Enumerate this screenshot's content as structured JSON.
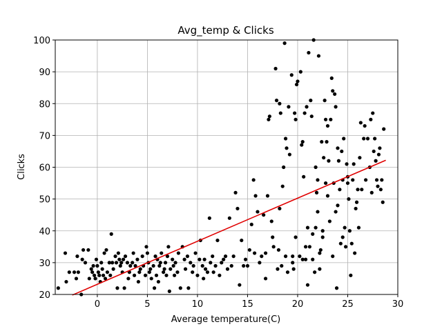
{
  "chart_data": {
    "type": "scatter",
    "title": "Avg_temp & Clicks",
    "xlabel": "Average temperature(C)",
    "ylabel": "Clicks",
    "xlim": [
      -4.2,
      30
    ],
    "ylim": [
      20,
      100
    ],
    "xticks": [
      0,
      5,
      10,
      15,
      20,
      25,
      30
    ],
    "yticks": [
      20,
      30,
      40,
      50,
      60,
      70,
      80,
      90,
      100
    ],
    "grid": true,
    "colors": {
      "points": "#000000",
      "fit_line": "#e00000",
      "grid": "#b0b0b0"
    },
    "fit_line": {
      "x": [
        -2.5,
        28.8
      ],
      "y": [
        19.8,
        62.2
      ]
    },
    "series": [
      {
        "values": [
          [
            -3.9,
            22
          ],
          [
            -3.2,
            33
          ],
          [
            -3.1,
            24
          ],
          [
            -2.8,
            27
          ],
          [
            -2.3,
            27
          ],
          [
            -2.1,
            25
          ],
          [
            -2.0,
            32
          ],
          [
            -1.9,
            27
          ],
          [
            -1.6,
            20
          ],
          [
            -1.5,
            31
          ],
          [
            -1.4,
            34
          ],
          [
            -1.2,
            30
          ],
          [
            -0.9,
            34
          ],
          [
            -0.8,
            25
          ],
          [
            -0.6,
            28
          ],
          [
            -0.5,
            27
          ],
          [
            -0.4,
            29
          ],
          [
            -0.3,
            26
          ],
          [
            -0.2,
            25
          ],
          [
            -0.1,
            31
          ],
          [
            0.0,
            29
          ],
          [
            0.1,
            27
          ],
          [
            0.2,
            26
          ],
          [
            0.3,
            24
          ],
          [
            0.4,
            30
          ],
          [
            0.5,
            28
          ],
          [
            0.6,
            26
          ],
          [
            0.7,
            33
          ],
          [
            0.8,
            25
          ],
          [
            0.9,
            34
          ],
          [
            1.0,
            27
          ],
          [
            1.2,
            30
          ],
          [
            1.3,
            26
          ],
          [
            1.4,
            39
          ],
          [
            1.5,
            30
          ],
          [
            1.6,
            28
          ],
          [
            1.8,
            32
          ],
          [
            1.9,
            30
          ],
          [
            2.0,
            22
          ],
          [
            2.1,
            33
          ],
          [
            2.2,
            31
          ],
          [
            2.3,
            29
          ],
          [
            2.4,
            30
          ],
          [
            2.5,
            27
          ],
          [
            2.6,
            31
          ],
          [
            2.7,
            22
          ],
          [
            2.8,
            32
          ],
          [
            3.0,
            30
          ],
          [
            3.1,
            25
          ],
          [
            3.2,
            27
          ],
          [
            3.3,
            29
          ],
          [
            3.5,
            30
          ],
          [
            3.6,
            33
          ],
          [
            3.7,
            26
          ],
          [
            3.8,
            29
          ],
          [
            4.0,
            31
          ],
          [
            4.1,
            24
          ],
          [
            4.2,
            27
          ],
          [
            4.3,
            28
          ],
          [
            4.5,
            32
          ],
          [
            4.6,
            29
          ],
          [
            4.8,
            26
          ],
          [
            4.9,
            35
          ],
          [
            5.0,
            33
          ],
          [
            5.1,
            30
          ],
          [
            5.2,
            27
          ],
          [
            5.3,
            28
          ],
          [
            5.4,
            25
          ],
          [
            5.6,
            29
          ],
          [
            5.7,
            22
          ],
          [
            5.8,
            32
          ],
          [
            5.9,
            26
          ],
          [
            6.0,
            31
          ],
          [
            6.1,
            24
          ],
          [
            6.2,
            29
          ],
          [
            6.3,
            30
          ],
          [
            6.4,
            33
          ],
          [
            6.6,
            27
          ],
          [
            6.7,
            28
          ],
          [
            6.8,
            30
          ],
          [
            6.9,
            26
          ],
          [
            7.0,
            32
          ],
          [
            7.1,
            35
          ],
          [
            7.2,
            21
          ],
          [
            7.3,
            28
          ],
          [
            7.5,
            31
          ],
          [
            7.6,
            29
          ],
          [
            7.7,
            26
          ],
          [
            7.8,
            30
          ],
          [
            8.0,
            27
          ],
          [
            8.1,
            33
          ],
          [
            8.3,
            22
          ],
          [
            8.5,
            35
          ],
          [
            8.7,
            31
          ],
          [
            8.8,
            28
          ],
          [
            9.0,
            32
          ],
          [
            9.1,
            22
          ],
          [
            9.3,
            30
          ],
          [
            9.5,
            27
          ],
          [
            9.6,
            29
          ],
          [
            9.8,
            33
          ],
          [
            10.0,
            26
          ],
          [
            10.2,
            31
          ],
          [
            10.3,
            37
          ],
          [
            10.5,
            29
          ],
          [
            10.6,
            25
          ],
          [
            10.7,
            31
          ],
          [
            10.8,
            28
          ],
          [
            11.0,
            27
          ],
          [
            11.2,
            44
          ],
          [
            11.3,
            30
          ],
          [
            11.5,
            32
          ],
          [
            11.6,
            27
          ],
          [
            11.8,
            29
          ],
          [
            12.0,
            37
          ],
          [
            12.2,
            26
          ],
          [
            12.4,
            30
          ],
          [
            12.6,
            31
          ],
          [
            12.8,
            32
          ],
          [
            13.0,
            28
          ],
          [
            13.2,
            44
          ],
          [
            13.4,
            29
          ],
          [
            13.6,
            32
          ],
          [
            13.8,
            52
          ],
          [
            14.0,
            47
          ],
          [
            14.2,
            23
          ],
          [
            14.4,
            37
          ],
          [
            14.6,
            29
          ],
          [
            14.8,
            31
          ],
          [
            15.0,
            29
          ],
          [
            15.2,
            34
          ],
          [
            15.4,
            42
          ],
          [
            15.6,
            56
          ],
          [
            15.7,
            33
          ],
          [
            15.8,
            51
          ],
          [
            16.0,
            46
          ],
          [
            16.2,
            30
          ],
          [
            16.4,
            32
          ],
          [
            16.6,
            45
          ],
          [
            16.8,
            25
          ],
          [
            17.0,
            51
          ],
          [
            17.1,
            75
          ],
          [
            17.2,
            76
          ],
          [
            17.4,
            43
          ],
          [
            17.6,
            35
          ],
          [
            17.8,
            91
          ],
          [
            17.9,
            81
          ],
          [
            18.0,
            28
          ],
          [
            18.1,
            34
          ],
          [
            18.2,
            80
          ],
          [
            18.3,
            77
          ],
          [
            18.4,
            29
          ],
          [
            18.5,
            54
          ],
          [
            18.6,
            60
          ],
          [
            18.7,
            99
          ],
          [
            18.8,
            69
          ],
          [
            18.9,
            66
          ],
          [
            19.0,
            27
          ],
          [
            19.1,
            79
          ],
          [
            19.2,
            64
          ],
          [
            19.4,
            89
          ],
          [
            19.5,
            32
          ],
          [
            19.6,
            28
          ],
          [
            19.7,
            77
          ],
          [
            19.8,
            75
          ],
          [
            19.9,
            86
          ],
          [
            20.0,
            87
          ],
          [
            20.2,
            32
          ],
          [
            20.3,
            90
          ],
          [
            20.4,
            67
          ],
          [
            20.5,
            68
          ],
          [
            20.6,
            57
          ],
          [
            20.7,
            77
          ],
          [
            20.8,
            31
          ],
          [
            20.9,
            79
          ],
          [
            21.0,
            23
          ],
          [
            21.1,
            96
          ],
          [
            21.2,
            35
          ],
          [
            21.3,
            81
          ],
          [
            21.4,
            76
          ],
          [
            21.5,
            31
          ],
          [
            21.6,
            100
          ],
          [
            21.7,
            27
          ],
          [
            21.8,
            41
          ],
          [
            21.9,
            52
          ],
          [
            22.0,
            56
          ],
          [
            22.1,
            95
          ],
          [
            22.2,
            28
          ],
          [
            22.3,
            34
          ],
          [
            22.4,
            68
          ],
          [
            22.5,
            38
          ],
          [
            22.6,
            63
          ],
          [
            22.7,
            81
          ],
          [
            22.8,
            75
          ],
          [
            22.9,
            68
          ],
          [
            23.0,
            73
          ],
          [
            23.1,
            62
          ],
          [
            23.2,
            43
          ],
          [
            23.3,
            75
          ],
          [
            23.4,
            88
          ],
          [
            23.5,
            84
          ],
          [
            23.6,
            55
          ],
          [
            23.7,
            83
          ],
          [
            23.8,
            79
          ],
          [
            23.9,
            22
          ],
          [
            24.0,
            66
          ],
          [
            24.1,
            62
          ],
          [
            24.2,
            53
          ],
          [
            24.3,
            36
          ],
          [
            24.4,
            65
          ],
          [
            24.5,
            56
          ],
          [
            24.6,
            69
          ],
          [
            24.7,
            41
          ],
          [
            24.8,
            35
          ],
          [
            24.9,
            61
          ],
          [
            25.0,
            57
          ],
          [
            25.1,
            50
          ],
          [
            25.2,
            40
          ],
          [
            25.3,
            26
          ],
          [
            25.4,
            36
          ],
          [
            25.5,
            56
          ],
          [
            25.6,
            61
          ],
          [
            25.7,
            33
          ],
          [
            25.8,
            47
          ],
          [
            25.9,
            49
          ],
          [
            26.0,
            53
          ],
          [
            26.1,
            41
          ],
          [
            26.2,
            63
          ],
          [
            26.3,
            74
          ],
          [
            26.4,
            53
          ],
          [
            26.6,
            69
          ],
          [
            26.7,
            73
          ],
          [
            26.8,
            56
          ],
          [
            27.0,
            69
          ],
          [
            27.2,
            60
          ],
          [
            27.3,
            75
          ],
          [
            27.4,
            52
          ],
          [
            27.5,
            77
          ],
          [
            27.6,
            65
          ],
          [
            27.7,
            69
          ],
          [
            27.8,
            62
          ],
          [
            27.9,
            56
          ],
          [
            28.0,
            54
          ],
          [
            28.1,
            64
          ],
          [
            28.2,
            66
          ],
          [
            28.3,
            53
          ],
          [
            28.4,
            56
          ],
          [
            28.5,
            49
          ],
          [
            28.6,
            72
          ],
          [
            20.5,
            31
          ],
          [
            21.0,
            41
          ],
          [
            22.0,
            46
          ],
          [
            23.0,
            51
          ],
          [
            24.0,
            48
          ],
          [
            22.5,
            40
          ],
          [
            21.5,
            39
          ],
          [
            23.5,
            32
          ],
          [
            24.5,
            38
          ],
          [
            19.8,
            38
          ],
          [
            20.8,
            35
          ],
          [
            22.2,
            33
          ],
          [
            23.8,
            46
          ],
          [
            25.0,
            55
          ],
          [
            21.8,
            60
          ],
          [
            22.8,
            55
          ],
          [
            18.2,
            47
          ],
          [
            17.5,
            38
          ],
          [
            16.8,
            33
          ],
          [
            19.5,
            30
          ],
          [
            18.8,
            32
          ]
        ]
      }
    ]
  }
}
